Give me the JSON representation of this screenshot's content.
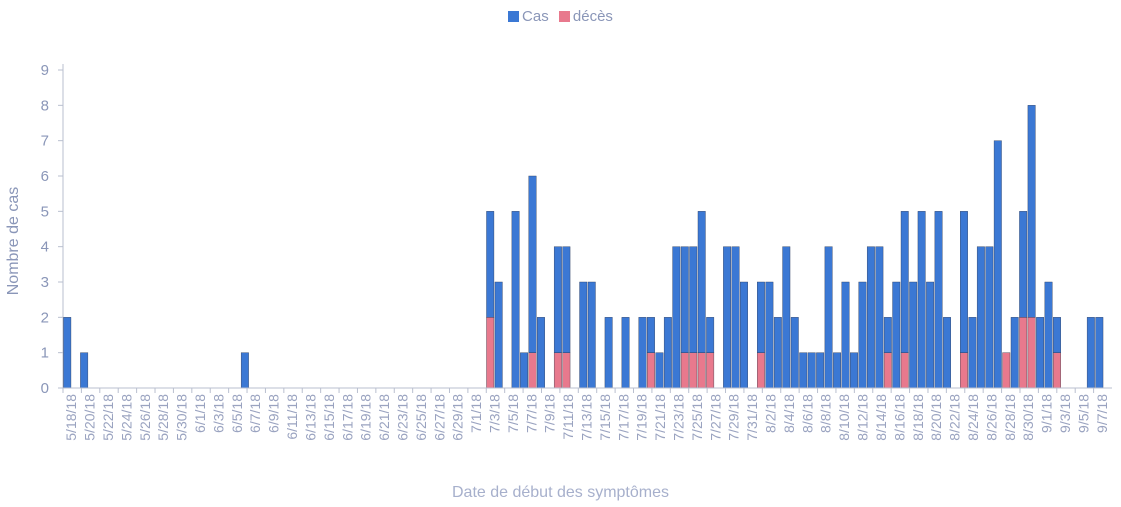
{
  "chart_data": {
    "type": "bar",
    "stacked": true,
    "legend": {
      "position": "top",
      "entries": [
        "Cas",
        "décès"
      ]
    },
    "xlabel": "Date de début des symptômes",
    "ylabel": "Nombre de cas",
    "ylim": [
      0,
      9
    ],
    "yticks": [
      0,
      1,
      2,
      3,
      4,
      5,
      6,
      7,
      8,
      9
    ],
    "xtick_labels": [
      "5/18/18",
      "5/20/18",
      "5/22/18",
      "5/24/18",
      "5/26/18",
      "5/28/18",
      "5/30/18",
      "6/1/18",
      "6/3/18",
      "6/5/18",
      "6/7/18",
      "6/9/18",
      "6/11/18",
      "6/13/18",
      "6/15/18",
      "6/17/18",
      "6/19/18",
      "6/21/18",
      "6/23/18",
      "6/25/18",
      "6/27/18",
      "6/29/18",
      "7/1/18",
      "7/3/18",
      "7/5/18",
      "7/7/18",
      "7/9/18",
      "7/11/18",
      "7/13/18",
      "7/15/18",
      "7/17/18",
      "7/19/18",
      "7/21/18",
      "7/23/18",
      "7/25/18",
      "7/27/18",
      "7/29/18",
      "7/31/18",
      "8/2/18",
      "8/4/18",
      "8/6/18",
      "8/8/18",
      "8/10/18",
      "8/12/18",
      "8/14/18",
      "8/16/18",
      "8/18/18",
      "8/20/18",
      "8/22/18",
      "8/24/18",
      "8/26/18",
      "8/28/18",
      "8/30/18",
      "9/1/18",
      "9/3/18",
      "9/5/18",
      "9/7/18"
    ],
    "series": [
      {
        "name": "Cas",
        "color": "#3b78d4",
        "values": [
          2,
          0,
          1,
          0,
          0,
          0,
          0,
          0,
          0,
          0,
          0,
          0,
          0,
          0,
          0,
          0,
          0,
          0,
          0,
          0,
          0,
          1,
          0,
          0,
          0,
          0,
          0,
          0,
          0,
          0,
          0,
          0,
          0,
          0,
          0,
          0,
          0,
          0,
          0,
          0,
          0,
          0,
          0,
          0,
          0,
          0,
          0,
          0,
          0,
          0,
          3,
          3,
          0,
          5,
          1,
          5,
          2,
          0,
          3,
          3,
          0,
          3,
          3,
          0,
          2,
          0,
          2,
          0,
          2,
          1,
          1,
          2,
          4,
          3,
          3,
          4,
          1,
          0,
          4,
          4,
          3,
          0,
          2,
          3,
          2,
          4,
          2,
          1,
          1,
          1,
          4,
          1,
          3,
          1,
          3,
          4,
          4,
          1,
          3,
          4,
          3,
          5,
          3,
          5,
          2,
          0,
          4,
          2,
          4,
          4,
          7,
          0,
          2,
          3,
          6,
          2,
          3,
          1,
          0,
          0,
          0,
          2,
          2,
          0
        ]
      },
      {
        "name": "décès",
        "color": "#e8798d",
        "values": [
          0,
          0,
          0,
          0,
          0,
          0,
          0,
          0,
          0,
          0,
          0,
          0,
          0,
          0,
          0,
          0,
          0,
          0,
          0,
          0,
          0,
          0,
          0,
          0,
          0,
          0,
          0,
          0,
          0,
          0,
          0,
          0,
          0,
          0,
          0,
          0,
          0,
          0,
          0,
          0,
          0,
          0,
          0,
          0,
          0,
          0,
          0,
          0,
          0,
          0,
          2,
          0,
          0,
          0,
          0,
          1,
          0,
          0,
          1,
          1,
          0,
          0,
          0,
          0,
          0,
          0,
          0,
          0,
          0,
          1,
          0,
          0,
          0,
          1,
          1,
          1,
          1,
          0,
          0,
          0,
          0,
          0,
          1,
          0,
          0,
          0,
          0,
          0,
          0,
          0,
          0,
          0,
          0,
          0,
          0,
          0,
          0,
          1,
          0,
          1,
          0,
          0,
          0,
          0,
          0,
          0,
          1,
          0,
          0,
          0,
          0,
          1,
          0,
          2,
          2,
          0,
          0,
          1,
          0,
          0,
          0,
          0,
          0,
          0
        ]
      }
    ]
  }
}
